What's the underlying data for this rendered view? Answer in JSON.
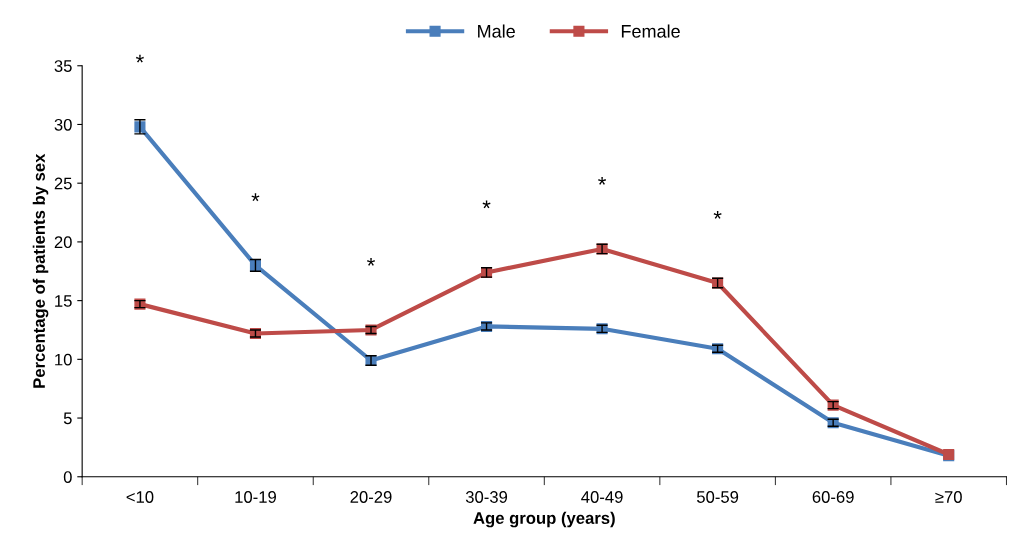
{
  "chart_data": {
    "type": "line",
    "xlabel": "Age group (years)",
    "ylabel": "Percentage of patients by sex",
    "categories": [
      "<10",
      "10-19",
      "20-29",
      "30-39",
      "40-49",
      "50-59",
      "60-69",
      "≥70"
    ],
    "series": [
      {
        "name": "Male",
        "color": "#4a7ebb",
        "values": [
          29.8,
          18.0,
          9.9,
          12.8,
          12.6,
          10.9,
          4.6,
          1.8
        ],
        "errors": [
          0.6,
          0.5,
          0.4,
          0.3,
          0.3,
          0.3,
          0.3,
          null
        ]
      },
      {
        "name": "Female",
        "color": "#be4b48",
        "values": [
          14.7,
          12.2,
          12.5,
          17.4,
          19.4,
          16.5,
          6.1,
          1.9
        ],
        "errors": [
          0.3,
          0.3,
          0.3,
          0.4,
          0.4,
          0.4,
          0.3,
          null
        ]
      }
    ],
    "annotations": [
      "*",
      "*",
      "*",
      "*",
      "*",
      "*"
    ],
    "ylim": [
      0,
      35
    ],
    "yticks": [
      0,
      5,
      10,
      15,
      20,
      25,
      30,
      35
    ],
    "grid": false,
    "legend": "top",
    "marker": "square",
    "line_style": "solid"
  }
}
